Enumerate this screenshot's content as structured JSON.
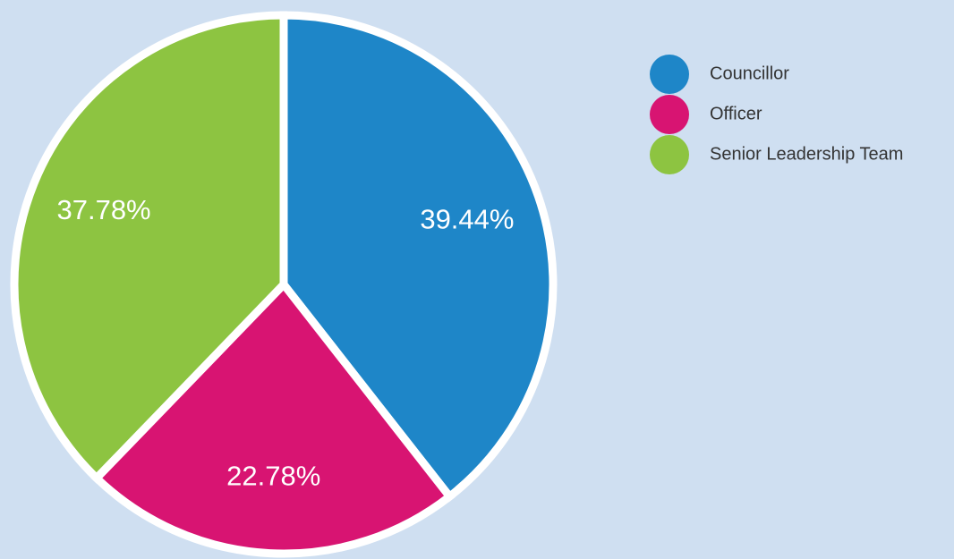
{
  "chart_data": {
    "type": "pie",
    "categories": [
      "Councillor",
      "Officer",
      "Senior Leadership Team"
    ],
    "values": [
      39.44,
      22.78,
      37.78
    ],
    "value_labels": [
      "39.44%",
      "22.78%",
      "37.78%"
    ],
    "colors": [
      "#1e86c8",
      "#d81472",
      "#8dc441"
    ],
    "legend": "top-right"
  }
}
